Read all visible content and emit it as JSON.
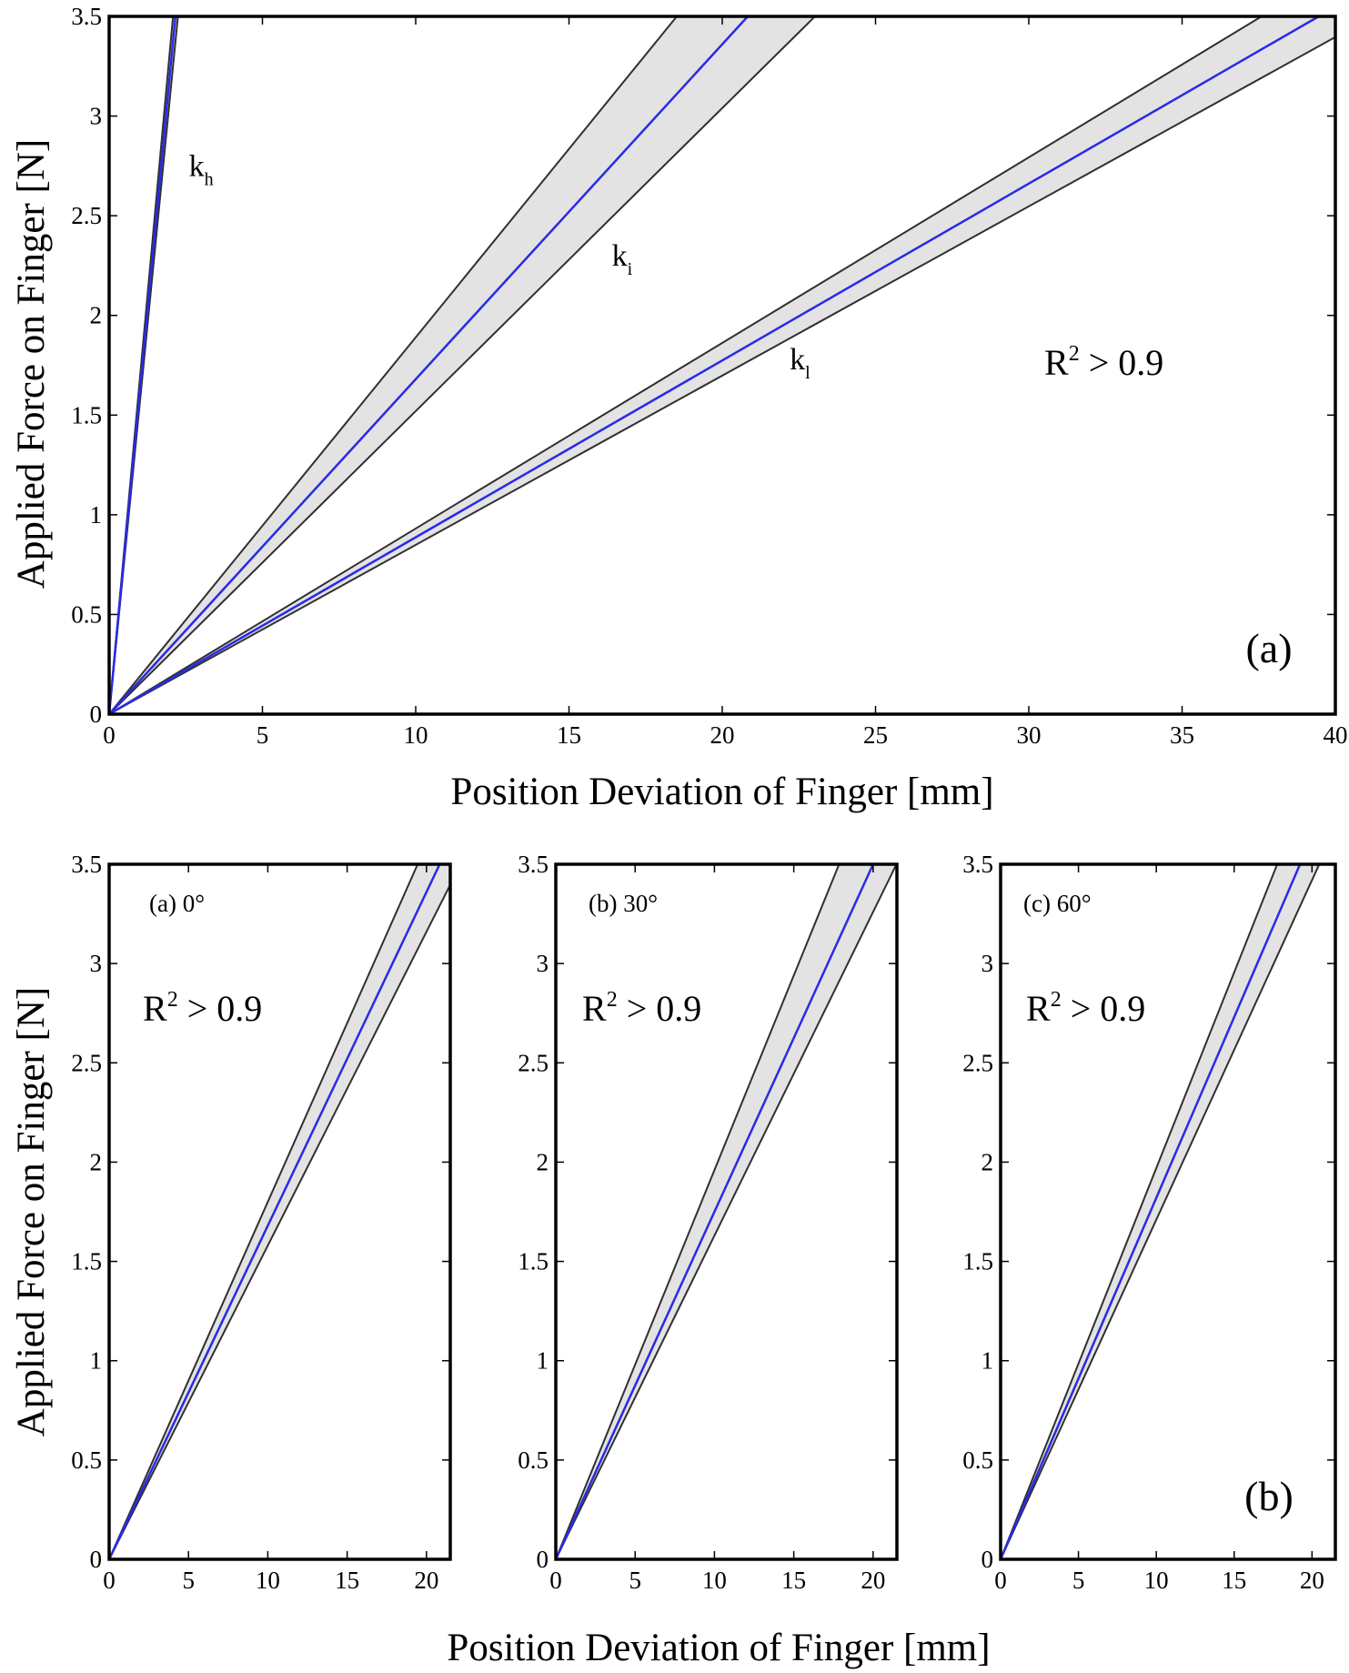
{
  "colors": {
    "band_fill": "#e3e3e3",
    "band_edge": "#303030",
    "fit_line": "#2a2ae6",
    "axis": "#000000"
  },
  "chart_data": [
    {
      "id": "top",
      "type": "line",
      "xlabel": "Position Deviation of Finger [mm]",
      "ylabel": "Applied Force on Finger [N]",
      "xlim": [
        0,
        40
      ],
      "ylim": [
        0,
        3.5
      ],
      "xticks": [
        0,
        5,
        10,
        15,
        20,
        25,
        30,
        35,
        40
      ],
      "yticks": [
        0,
        0.5,
        1,
        1.5,
        2,
        2.5,
        3,
        3.5
      ],
      "xtick_labels": [
        "0",
        "5",
        "10",
        "15",
        "20",
        "25",
        "30",
        "35",
        "40"
      ],
      "ytick_labels": [
        "0",
        "0.5",
        "1",
        "1.5",
        "2",
        "2.5",
        "3",
        "3.5"
      ],
      "grid": false,
      "panel_tag": "(a)",
      "r2_text": {
        "base": "R",
        "sup": "2",
        "rest": " > 0.9"
      },
      "series": [
        {
          "label": "k",
          "label_sub": "h",
          "label_at": [
            2.6,
            2.7
          ],
          "slope_low": 1.56,
          "slope_fit": 1.62,
          "slope_high": 1.68
        },
        {
          "label": "k",
          "label_sub": "i",
          "label_at": [
            16.4,
            2.25
          ],
          "slope_low": 0.152,
          "slope_fit": 0.168,
          "slope_high": 0.189
        },
        {
          "label": "k",
          "label_sub": "l",
          "label_at": [
            22.2,
            1.73
          ],
          "slope_low": 0.0849,
          "slope_fit": 0.0887,
          "slope_high": 0.0931
        }
      ]
    },
    {
      "id": "bottom-0",
      "type": "line",
      "subtitle": "(a) 0°",
      "xlim": [
        0,
        21.5
      ],
      "ylim": [
        0,
        3.5
      ],
      "xticks": [
        0,
        5,
        10,
        15,
        20
      ],
      "yticks": [
        0,
        0.5,
        1,
        1.5,
        2,
        2.5,
        3,
        3.5
      ],
      "xtick_labels": [
        "0",
        "5",
        "10",
        "15",
        "20"
      ],
      "ytick_labels": [
        "0",
        "0.5",
        "1",
        "1.5",
        "2",
        "2.5",
        "3",
        "3.5"
      ],
      "grid": false,
      "r2_text": {
        "base": "R",
        "sup": "2",
        "rest": " > 0.9"
      },
      "series": [
        {
          "slope_low": 0.158,
          "slope_fit": 0.168,
          "slope_high": 0.18
        }
      ]
    },
    {
      "id": "bottom-30",
      "type": "line",
      "subtitle": "(b) 30°",
      "xlim": [
        0,
        21.5
      ],
      "ylim": [
        0,
        3.5
      ],
      "xticks": [
        0,
        5,
        10,
        15,
        20
      ],
      "yticks": [
        0,
        0.5,
        1,
        1.5,
        2,
        2.5,
        3,
        3.5
      ],
      "xtick_labels": [
        "0",
        "5",
        "10",
        "15",
        "20"
      ],
      "ytick_labels": [
        "0",
        "0.5",
        "1",
        "1.5",
        "2",
        "2.5",
        "3",
        "3.5"
      ],
      "grid": false,
      "r2_text": {
        "base": "R",
        "sup": "2",
        "rest": " > 0.9"
      },
      "series": [
        {
          "slope_low": 0.163,
          "slope_fit": 0.175,
          "slope_high": 0.196
        }
      ]
    },
    {
      "id": "bottom-60",
      "type": "line",
      "subtitle": "(c) 60°",
      "xlim": [
        0,
        21.5
      ],
      "ylim": [
        0,
        3.5
      ],
      "xticks": [
        0,
        5,
        10,
        15,
        20
      ],
      "yticks": [
        0,
        0.5,
        1,
        1.5,
        2,
        2.5,
        3,
        3.5
      ],
      "xtick_labels": [
        "0",
        "5",
        "10",
        "15",
        "20"
      ],
      "ytick_labels": [
        "0",
        "0.5",
        "1",
        "1.5",
        "2",
        "2.5",
        "3",
        "3.5"
      ],
      "grid": false,
      "panel_tag": "(b)",
      "r2_text": {
        "base": "R",
        "sup": "2",
        "rest": " > 0.9"
      },
      "series": [
        {
          "slope_low": 0.171,
          "slope_fit": 0.182,
          "slope_high": 0.197
        }
      ]
    }
  ],
  "shared_labels": {
    "bottom_xlabel": "Position Deviation of Finger [mm]",
    "bottom_ylabel": "Applied Force on Finger [N]"
  }
}
